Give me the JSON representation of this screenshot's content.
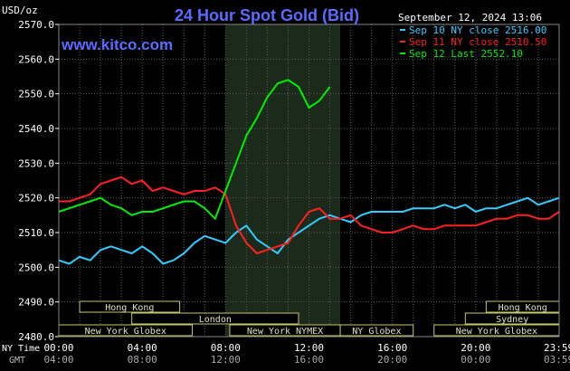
{
  "chart_data": {
    "type": "line",
    "title": "24 Hour Spot Gold (Bid)",
    "website": "www.kitco.com",
    "date_label": "September 12, 2024 13:06",
    "ylabel": "USD/oz",
    "ylim": [
      2480.0,
      2570.0
    ],
    "y_ticks": [
      "2570.0",
      "2560.0",
      "2550.0",
      "2540.0",
      "2530.0",
      "2520.0",
      "2510.0",
      "2500.0",
      "2490.0",
      "2480.0"
    ],
    "xlim": [
      0,
      24
    ],
    "x_ticks": [
      {
        "ny": "00:00",
        "gmt": "04:00"
      },
      {
        "ny": "04:00",
        "gmt": "08:00"
      },
      {
        "ny": "08:00",
        "gmt": "12:00"
      },
      {
        "ny": "12:00",
        "gmt": "16:00"
      },
      {
        "ny": "16:00",
        "gmt": "20:00"
      },
      {
        "ny": "20:00",
        "gmt": "00:00"
      },
      {
        "ny": "23:59",
        "gmt": "03:59"
      }
    ],
    "x_tick_hours": [
      0,
      4,
      8,
      12,
      16,
      20,
      23.983
    ],
    "x_axis_label_ny": "NY Time",
    "x_axis_label_gmt": "GMT",
    "grid": true,
    "legend_position": "top-right",
    "highlight_band_hours": [
      8.0,
      13.5
    ],
    "sessions": [
      {
        "label": "Hong Kong",
        "start": 1.0,
        "end": 5.8,
        "row": 1
      },
      {
        "label": "London",
        "start": 3.5,
        "end": 11.5,
        "row": 2
      },
      {
        "label": "New York Globex",
        "start": 0.0,
        "end": 6.4,
        "row": 3
      },
      {
        "label": "New York NYMEX",
        "start": 8.2,
        "end": 13.5,
        "row": 3
      },
      {
        "label": "NY Globex",
        "start": 13.5,
        "end": 17.0,
        "row": 3
      },
      {
        "label": "Hong Kong",
        "start": 20.5,
        "end": 24.0,
        "row": 1
      },
      {
        "label": "Sydney",
        "start": 19.5,
        "end": 24.0,
        "row": 2
      },
      {
        "label": "New York Globex",
        "start": 18.0,
        "end": 24.0,
        "row": 3
      }
    ],
    "series": [
      {
        "name": "Sep 10 NY close 2516.00",
        "color": "#33ccff",
        "x": [
          0.0,
          0.5,
          1.0,
          1.5,
          2.0,
          2.5,
          3.0,
          3.5,
          4.0,
          4.5,
          5.0,
          5.5,
          6.0,
          6.5,
          7.0,
          7.5,
          8.0,
          8.5,
          9.0,
          9.5,
          10.0,
          10.5,
          11.0,
          11.5,
          12.0,
          12.5,
          13.0,
          13.5,
          14.0,
          14.5,
          15.0,
          15.5,
          16.0,
          16.5,
          17.0,
          17.5,
          18.0,
          18.5,
          19.0,
          19.5,
          20.0,
          20.5,
          21.0,
          21.5,
          22.0,
          22.5,
          23.0,
          23.5,
          24.0
        ],
        "y": [
          2502,
          2501,
          2503,
          2502,
          2505,
          2506,
          2505,
          2504,
          2506,
          2504,
          2501,
          2502,
          2504,
          2507,
          2509,
          2508,
          2507,
          2510,
          2512,
          2508,
          2506,
          2504,
          2508,
          2510,
          2512,
          2514,
          2515,
          2514,
          2513,
          2515,
          2516,
          2516,
          2516,
          2516,
          2517,
          2517,
          2517,
          2518,
          2517,
          2518,
          2516,
          2517,
          2517,
          2518,
          2519,
          2520,
          2518,
          2519,
          2520
        ]
      },
      {
        "name": "Sep 11 NY close 2510.50",
        "color": "#ff2020",
        "x": [
          0.0,
          0.5,
          1.0,
          1.5,
          2.0,
          2.5,
          3.0,
          3.5,
          4.0,
          4.5,
          5.0,
          5.5,
          6.0,
          6.5,
          7.0,
          7.5,
          8.0,
          8.5,
          9.0,
          9.5,
          10.0,
          10.5,
          11.0,
          11.5,
          12.0,
          12.5,
          13.0,
          13.5,
          14.0,
          14.5,
          15.0,
          15.5,
          16.0,
          16.5,
          17.0,
          17.5,
          18.0,
          18.5,
          19.0,
          19.5,
          20.0,
          20.5,
          21.0,
          21.5,
          22.0,
          22.5,
          23.0,
          23.5,
          24.0
        ],
        "y": [
          2519,
          2519,
          2520,
          2521,
          2524,
          2525,
          2526,
          2524,
          2525,
          2522,
          2523,
          2522,
          2521,
          2522,
          2522,
          2523,
          2521,
          2512,
          2507,
          2504,
          2505,
          2506,
          2507,
          2512,
          2516,
          2517,
          2514,
          2514,
          2515,
          2512,
          2511,
          2510,
          2510,
          2511,
          2512,
          2511,
          2511,
          2512,
          2512,
          2512,
          2512,
          2513,
          2514,
          2514,
          2515,
          2515,
          2514,
          2514,
          2516
        ]
      },
      {
        "name": "Sep 12 Last 2552.10",
        "color": "#00ee00",
        "x": [
          0.0,
          0.5,
          1.0,
          1.5,
          2.0,
          2.5,
          3.0,
          3.5,
          4.0,
          4.5,
          5.0,
          5.5,
          6.0,
          6.5,
          7.0,
          7.5,
          8.0,
          8.5,
          9.0,
          9.5,
          10.0,
          10.5,
          11.0,
          11.5,
          12.0,
          12.5,
          13.0
        ],
        "y": [
          2516,
          2517,
          2518,
          2519,
          2520,
          2518,
          2517,
          2515,
          2516,
          2516,
          2517,
          2518,
          2519,
          2519,
          2517,
          2514,
          2522,
          2530,
          2538,
          2543,
          2549,
          2553,
          2554,
          2552,
          2546,
          2548,
          2552
        ]
      }
    ]
  }
}
